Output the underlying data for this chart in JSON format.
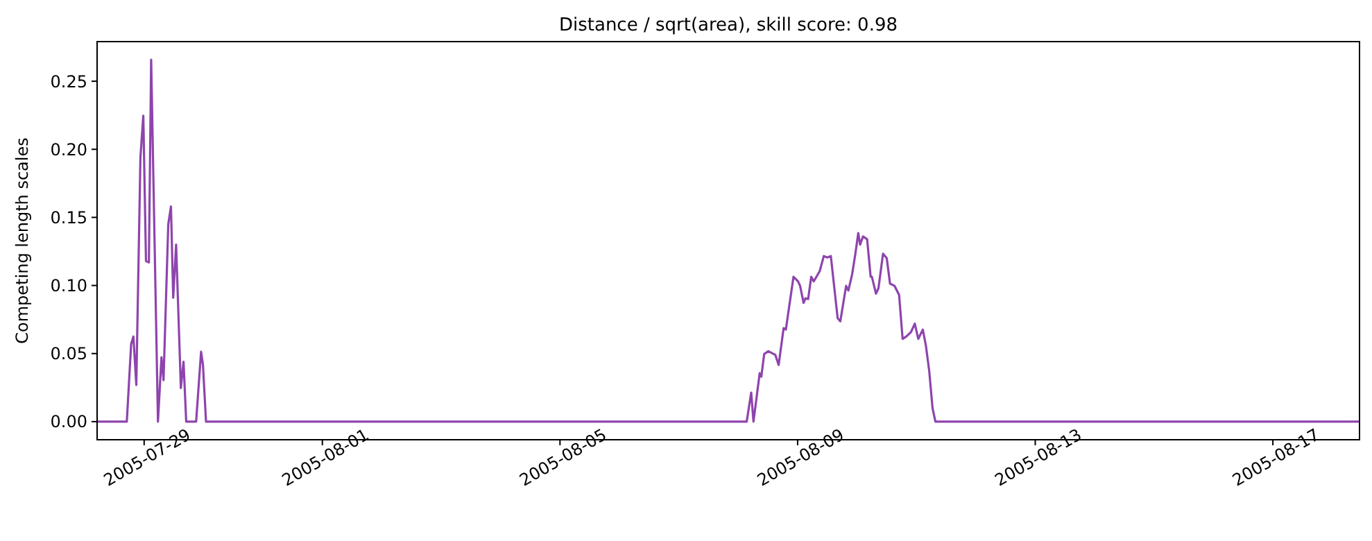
{
  "chart_data": {
    "type": "line",
    "title": "Distance / sqrt(area), skill score: 0.98",
    "ylabel": "Competing length scales",
    "xlim": [
      "2005-07-28T05:00",
      "2005-08-18T11:00"
    ],
    "xticks": [
      "2005-07-29",
      "2005-08-01",
      "2005-08-05",
      "2005-08-09",
      "2005-08-13",
      "2005-08-17"
    ],
    "ylim": [
      -0.0133,
      0.2791
    ],
    "yticks": [
      {
        "value": 0,
        "label": "0.00"
      },
      {
        "value": 0.05,
        "label": "0.05"
      },
      {
        "value": 0.1,
        "label": "0.10"
      },
      {
        "value": 0.15,
        "label": "0.15"
      },
      {
        "value": 0.2,
        "label": "0.20"
      },
      {
        "value": 0.25,
        "label": "0.25"
      }
    ],
    "series": [
      {
        "color": "#8e44ad",
        "x": [
          "2005-07-28T05:00",
          "2005-07-28T17:00",
          "2005-07-28T18:45",
          "2005-07-28T19:40",
          "2005-07-28T20:50",
          "2005-07-28T22:30",
          "2005-07-28T23:40",
          "2005-07-29T00:45",
          "2005-07-29T01:55",
          "2005-07-29T02:50",
          "2005-07-29T05:35",
          "2005-07-29T07:00",
          "2005-07-29T07:50",
          "2005-07-29T09:45",
          "2005-07-29T10:50",
          "2005-07-29T11:45",
          "2005-07-29T12:55",
          "2005-07-29T14:50",
          "2005-07-29T15:55",
          "2005-07-29T17:00",
          "2005-07-29T21:00",
          "2005-07-29T23:00",
          "2005-07-29T23:45",
          "2005-07-30T01:00",
          "2005-08-08T03:25",
          "2005-08-08T05:15",
          "2005-08-08T06:10",
          "2005-08-08T08:40",
          "2005-08-08T09:20",
          "2005-08-08T10:30",
          "2005-08-08T12:10",
          "2005-08-08T15:00",
          "2005-08-08T16:20",
          "2005-08-08T18:20",
          "2005-08-08T19:15",
          "2005-08-08T22:20",
          "2005-08-09T00:10",
          "2005-08-09T01:00",
          "2005-08-09T02:25",
          "2005-08-09T03:10",
          "2005-08-09T04:15",
          "2005-08-09T05:30",
          "2005-08-09T06:30",
          "2005-08-09T08:55",
          "2005-08-09T10:35",
          "2005-08-09T12:00",
          "2005-08-09T13:25",
          "2005-08-09T16:10",
          "2005-08-09T17:15",
          "2005-08-09T19:35",
          "2005-08-09T20:30",
          "2005-08-09T22:00",
          "2005-08-09T23:20",
          "2005-08-10T00:30",
          "2005-08-10T01:15",
          "2005-08-10T02:25",
          "2005-08-10T04:05",
          "2005-08-10T05:30",
          "2005-08-10T06:00",
          "2005-08-10T07:40",
          "2005-08-10T08:40",
          "2005-08-10T10:30",
          "2005-08-10T12:00",
          "2005-08-10T13:20",
          "2005-08-10T15:10",
          "2005-08-10T17:00",
          "2005-08-10T18:25",
          "2005-08-10T19:55",
          "2005-08-10T21:50",
          "2005-08-10T23:20",
          "2005-08-11T00:45",
          "2005-08-11T02:35",
          "2005-08-11T03:50",
          "2005-08-11T05:10",
          "2005-08-11T06:30",
          "2005-08-11T07:40",
          "2005-08-18T11:00"
        ],
        "values": [
          0,
          0,
          0.057,
          0.0625,
          0.027,
          0.194,
          0.2247,
          0.118,
          0.117,
          0.2658,
          0,
          0.0473,
          0.0304,
          0.145,
          0.158,
          0.091,
          0.13,
          0.0247,
          0.044,
          0,
          0,
          0.0513,
          0.042,
          0,
          0,
          0.0213,
          0,
          0.0355,
          0.033,
          0.0497,
          0.0517,
          0.049,
          0.0416,
          0.0686,
          0.0676,
          0.1064,
          0.103,
          0.0997,
          0.0872,
          0.0906,
          0.09,
          0.1064,
          0.103,
          0.1105,
          0.1216,
          0.1206,
          0.1216,
          0.076,
          0.0737,
          0.0997,
          0.0963,
          0.108,
          0.1233,
          0.1385,
          0.13,
          0.136,
          0.134,
          0.1064,
          0.1064,
          0.094,
          0.098,
          0.1233,
          0.12,
          0.1013,
          0.0997,
          0.093,
          0.0608,
          0.0625,
          0.0659,
          0.072,
          0.0608,
          0.0676,
          0.0557,
          0.0372,
          0.0101,
          0,
          0
        ]
      }
    ]
  }
}
